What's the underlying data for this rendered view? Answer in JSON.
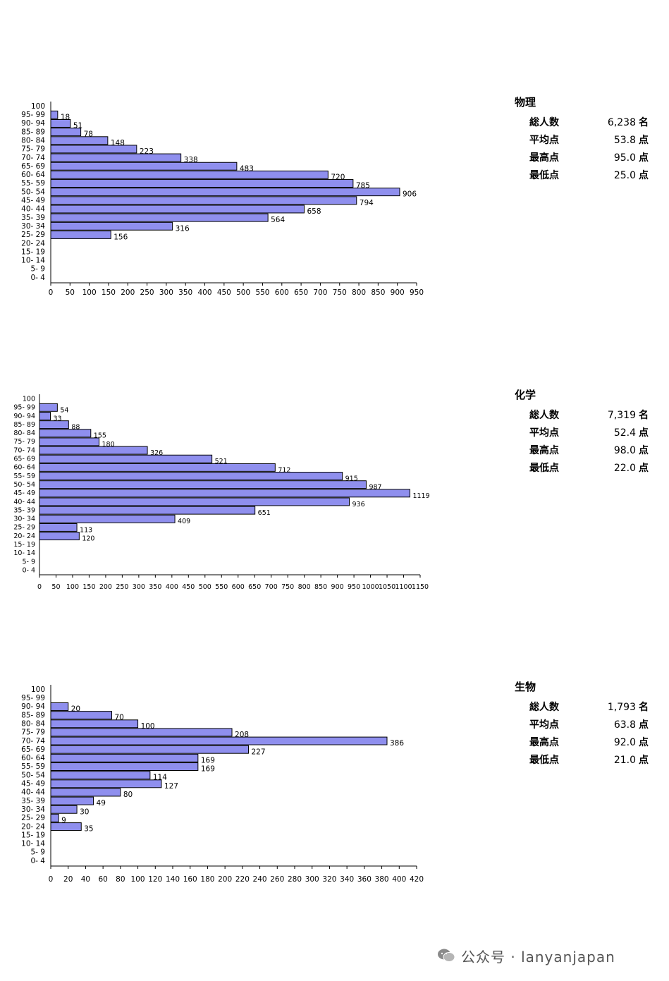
{
  "bar_color": "#8f8fee",
  "bar_stroke": "#000000",
  "score_bands": [
    "100",
    "95- 99",
    "90- 94",
    "85- 89",
    "80- 84",
    "75- 79",
    "70- 74",
    "65- 69",
    "60- 64",
    "55- 59",
    "50- 54",
    "45- 49",
    "40- 44",
    "35- 39",
    "30- 34",
    "25- 29",
    "20- 24",
    "15- 19",
    "10- 14",
    "5- 9",
    "0- 4"
  ],
  "panels": [
    {
      "subject": "物理",
      "stats": [
        {
          "label": "総人数",
          "value": "6,238",
          "unit": "名"
        },
        {
          "label": "平均点",
          "value": "53.8",
          "unit": "点"
        },
        {
          "label": "最高点",
          "value": "95.0",
          "unit": "点"
        },
        {
          "label": "最低点",
          "value": "25.0",
          "unit": "点"
        }
      ]
    },
    {
      "subject": "化学",
      "stats": [
        {
          "label": "総人数",
          "value": "7,319",
          "unit": "名"
        },
        {
          "label": "平均点",
          "value": "52.4",
          "unit": "点"
        },
        {
          "label": "最高点",
          "value": "98.0",
          "unit": "点"
        },
        {
          "label": "最低点",
          "value": "22.0",
          "unit": "点"
        }
      ]
    },
    {
      "subject": "生物",
      "stats": [
        {
          "label": "総人数",
          "value": "1,793",
          "unit": "名"
        },
        {
          "label": "平均点",
          "value": "63.8",
          "unit": "点"
        },
        {
          "label": "最高点",
          "value": "92.0",
          "unit": "点"
        },
        {
          "label": "最低点",
          "value": "21.0",
          "unit": "点"
        }
      ]
    }
  ],
  "chart_data": [
    {
      "type": "bar",
      "orientation": "horizontal",
      "categories": [
        "100",
        "95- 99",
        "90- 94",
        "85- 89",
        "80- 84",
        "75- 79",
        "70- 74",
        "65- 69",
        "60- 64",
        "55- 59",
        "50- 54",
        "45- 49",
        "40- 44",
        "35- 39",
        "30- 34",
        "25- 29",
        "20- 24",
        "15- 19",
        "10- 14",
        "5- 9",
        "0- 4"
      ],
      "values": [
        null,
        18,
        51,
        78,
        148,
        223,
        338,
        483,
        720,
        785,
        906,
        794,
        658,
        564,
        316,
        156,
        null,
        null,
        null,
        null,
        null
      ],
      "xlim": [
        0,
        950
      ],
      "xticks": [
        0,
        50,
        100,
        150,
        200,
        250,
        300,
        350,
        400,
        450,
        500,
        550,
        600,
        650,
        700,
        750,
        800,
        850,
        900,
        950
      ]
    },
    {
      "type": "bar",
      "orientation": "horizontal",
      "categories": [
        "100",
        "95- 99",
        "90- 94",
        "85- 89",
        "80- 84",
        "75- 79",
        "70- 74",
        "65- 69",
        "60- 64",
        "55- 59",
        "50- 54",
        "45- 49",
        "40- 44",
        "35- 39",
        "30- 34",
        "25- 29",
        "20- 24",
        "15- 19",
        "10- 14",
        "5- 9",
        "0- 4"
      ],
      "values": [
        null,
        54,
        33,
        88,
        155,
        180,
        326,
        521,
        712,
        915,
        987,
        1119,
        936,
        651,
        409,
        113,
        120,
        null,
        null,
        null,
        null
      ],
      "xlim": [
        0,
        1150
      ],
      "xticks": [
        0,
        50,
        100,
        150,
        200,
        250,
        300,
        350,
        400,
        450,
        500,
        550,
        600,
        650,
        700,
        750,
        800,
        850,
        900,
        950,
        1000,
        1050,
        1100,
        1150
      ]
    },
    {
      "type": "bar",
      "orientation": "horizontal",
      "categories": [
        "100",
        "95- 99",
        "90- 94",
        "85- 89",
        "80- 84",
        "75- 79",
        "70- 74",
        "65- 69",
        "60- 64",
        "55- 59",
        "50- 54",
        "45- 49",
        "40- 44",
        "35- 39",
        "30- 34",
        "25- 29",
        "20- 24",
        "15- 19",
        "10- 14",
        "5- 9",
        "0- 4"
      ],
      "values": [
        null,
        null,
        20,
        70,
        100,
        208,
        386,
        227,
        169,
        169,
        114,
        127,
        80,
        49,
        30,
        9,
        35,
        null,
        null,
        null,
        null
      ],
      "xlim": [
        0,
        420
      ],
      "xticks": [
        0,
        20,
        40,
        60,
        80,
        100,
        120,
        140,
        160,
        180,
        200,
        220,
        240,
        260,
        280,
        300,
        320,
        340,
        360,
        380,
        400,
        420
      ]
    }
  ],
  "watermark": "公众号 · lanyanjapan"
}
